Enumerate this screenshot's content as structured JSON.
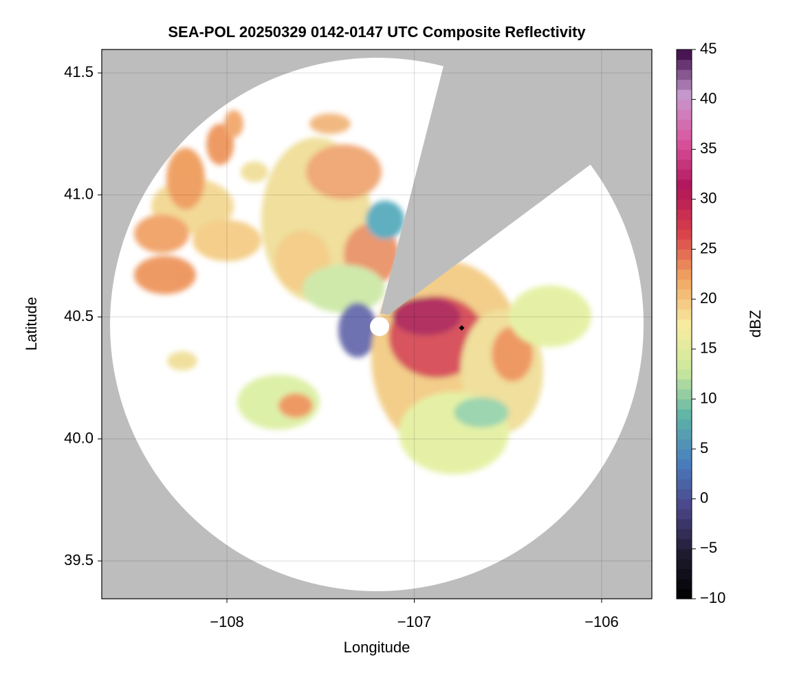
{
  "chart_data": {
    "type": "heatmap",
    "title": "SEA-POL 20250329 0142-0147 UTC Composite Reflectivity",
    "x_label": "Longitude",
    "y_label": "Latitude",
    "xlim": [
      -108.668,
      -105.732
    ],
    "ylim": [
      39.345,
      41.596
    ],
    "xticks": [
      {
        "value": -108,
        "label": "−108"
      },
      {
        "value": -107,
        "label": "−107"
      },
      {
        "value": -106,
        "label": "−106"
      }
    ],
    "yticks": [
      39.5,
      {
        "value": 40,
        "label": "40.0"
      },
      40.5,
      {
        "value": 41,
        "label": "41.0"
      },
      41.5
    ],
    "grid": true,
    "background": "#bdbdbd",
    "points": [
      {
        "x": -106.747,
        "y": 40.455,
        "color": "#000000"
      }
    ],
    "colorbar": {
      "label": "dBZ",
      "lim": [
        -10,
        45
      ],
      "ticks": [
        {
          "value": -10,
          "label": "−10"
        },
        {
          "value": -5,
          "label": "−5"
        },
        0,
        5,
        10,
        15,
        20,
        25,
        30,
        35,
        40,
        45
      ],
      "colors": [
        "#000000",
        "#1f1b30",
        "#4b4588",
        "#4a7fbf",
        "#5fb3a6",
        "#cde99c",
        "#f8eba0",
        "#f0a561",
        "#d8404a",
        "#b0155a",
        "#d9559e",
        "#c79ad0",
        "#3a0644"
      ]
    }
  }
}
